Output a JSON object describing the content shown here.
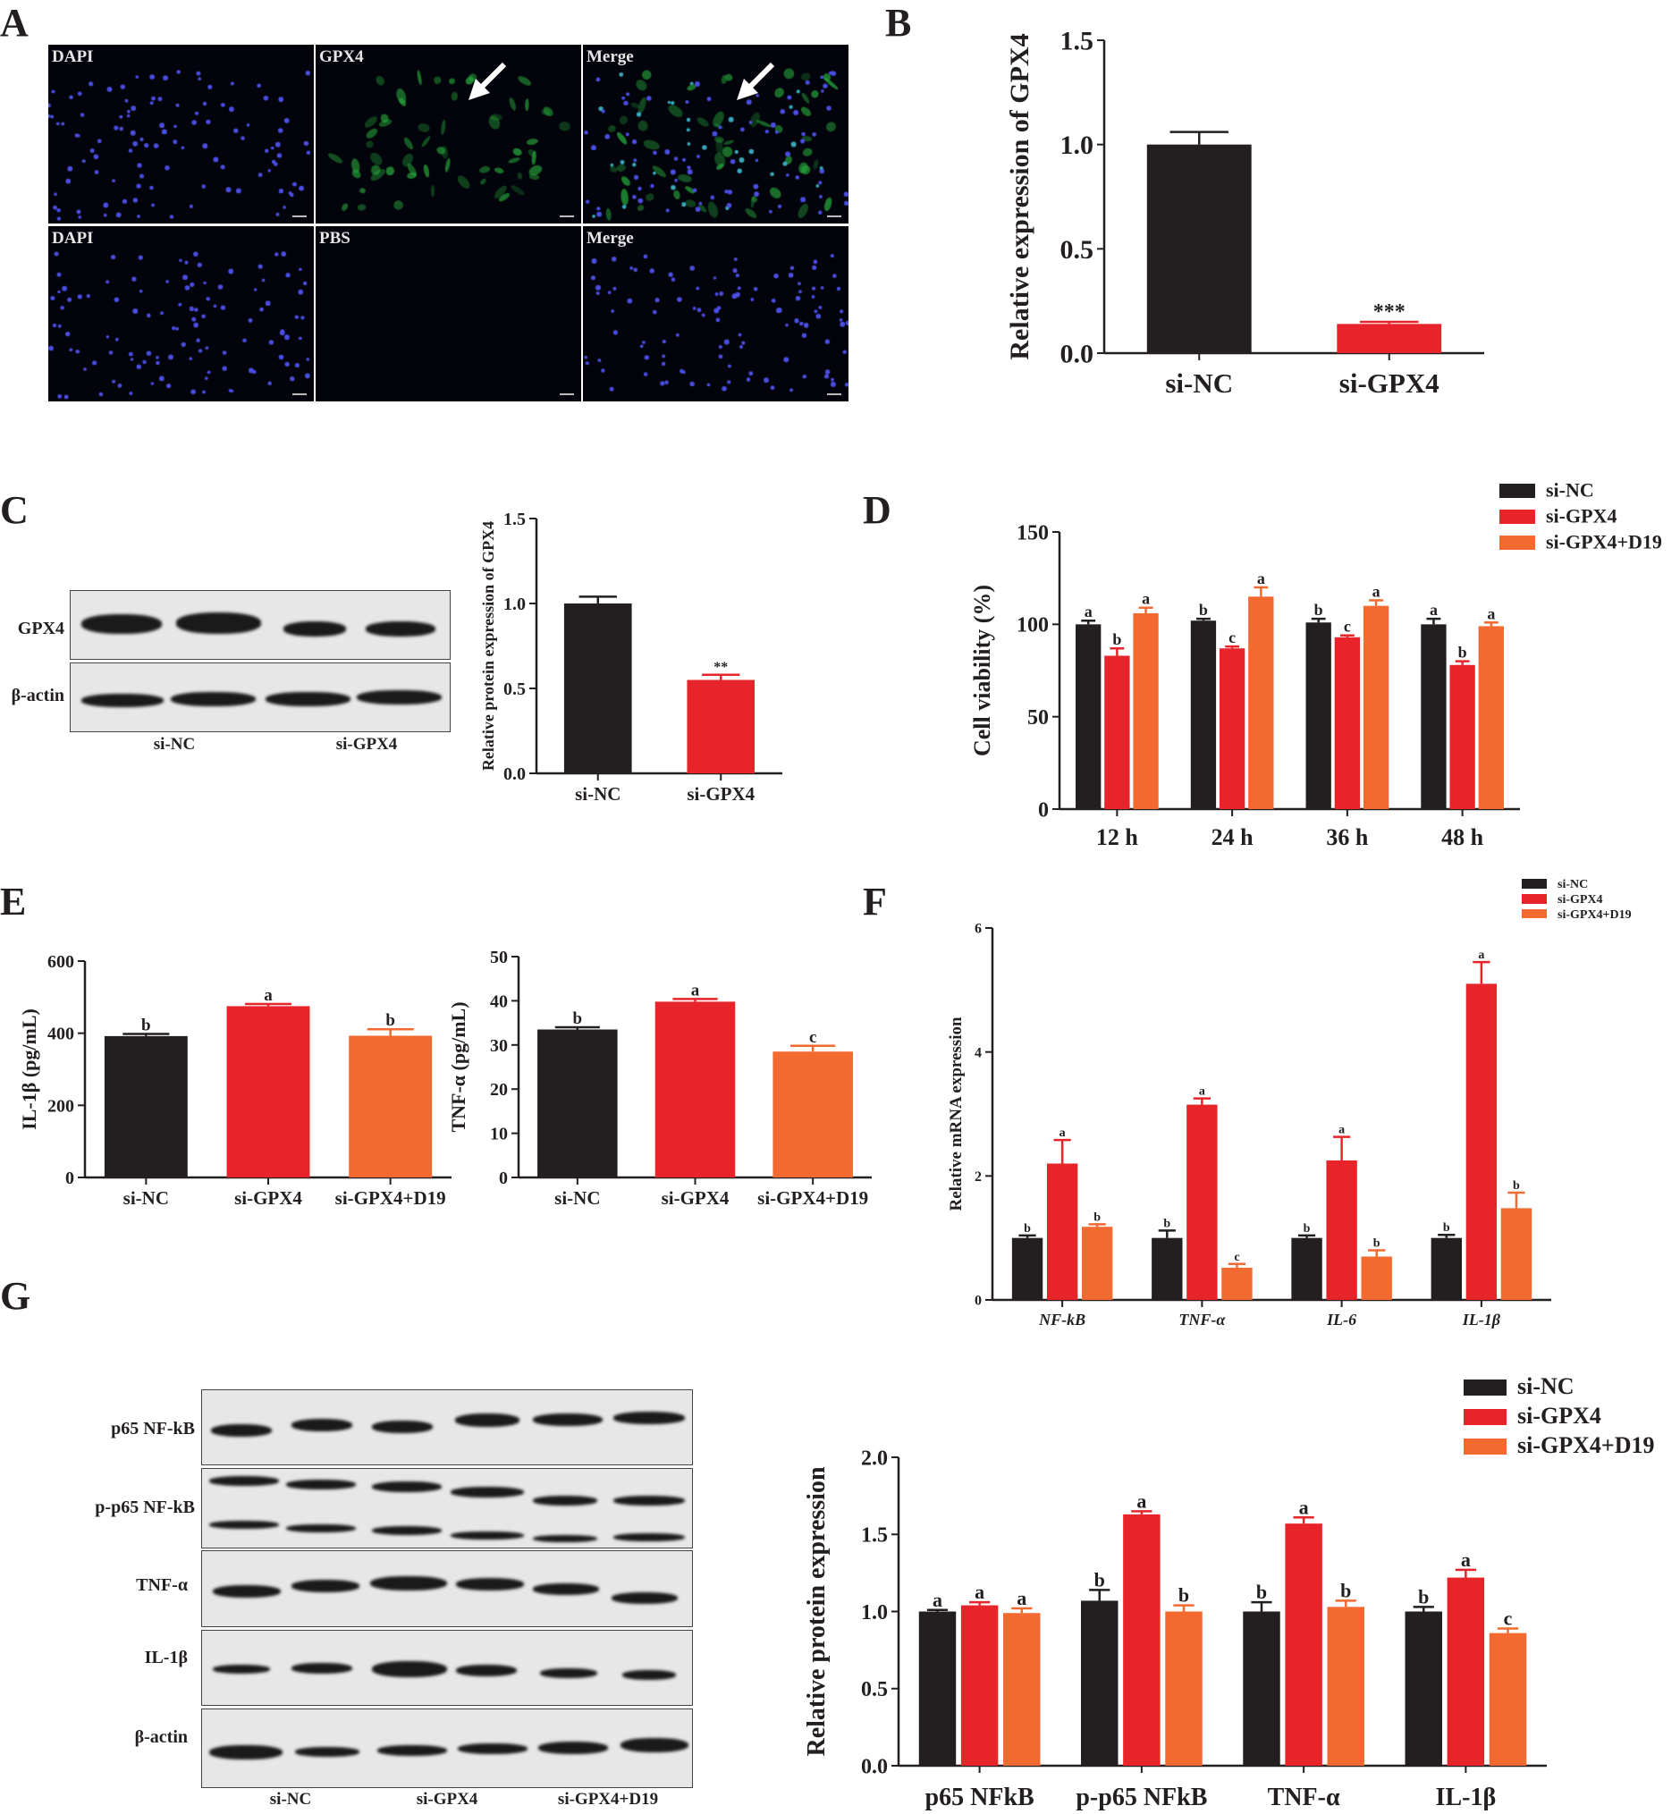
{
  "panels": {
    "A": "A",
    "B": "B",
    "C": "C",
    "D": "D",
    "E": "E",
    "F": "F",
    "G": "G"
  },
  "colors": {
    "si_nc": "#231f20",
    "si_gpx4": "#e6242a",
    "si_gpx4_d19": "#f26a30"
  },
  "panel_a": {
    "top_row": [
      "DAPI",
      "GPX4",
      "Merge"
    ],
    "bottom_row": [
      "DAPI",
      "PBS",
      "Merge"
    ]
  },
  "panel_c_blot": {
    "rows": [
      "GPX4",
      "β-actin"
    ],
    "lanes": [
      "si-NC",
      "si-GPX4"
    ]
  },
  "panel_g_blot": {
    "rows": [
      "p65 NF-kB",
      "p-p65 NF-kB",
      "TNF-α",
      "IL-1β",
      "β-actin"
    ],
    "lanes": [
      "si-NC",
      "si-GPX4",
      "si-GPX4+D19"
    ]
  },
  "chart_data": [
    {
      "id": "B",
      "type": "bar",
      "ylabel": "Relative expression of GPX4",
      "ylim": [
        0,
        1.5
      ],
      "yticks": [
        "0.0",
        "0.5",
        "1.0",
        "1.5"
      ],
      "categories": [
        "si-NC",
        "si-GPX4"
      ],
      "series": [
        {
          "values": [
            1.0,
            0.14
          ],
          "errors": [
            0.06,
            0.01
          ]
        }
      ],
      "annotations": [
        "",
        "***"
      ]
    },
    {
      "id": "C",
      "type": "bar",
      "ylabel": "Relative protein expression of GPX4",
      "ylim": [
        0,
        1.5
      ],
      "yticks": [
        "0.0",
        "0.5",
        "1.0",
        "1.5"
      ],
      "categories": [
        "si-NC",
        "si-GPX4"
      ],
      "series": [
        {
          "values": [
            1.0,
            0.55
          ],
          "errors": [
            0.04,
            0.03
          ]
        }
      ],
      "annotations": [
        "",
        "**"
      ]
    },
    {
      "id": "D",
      "type": "bar",
      "ylabel": "Cell viability (%)",
      "ylim": [
        0,
        150
      ],
      "yticks": [
        "0",
        "50",
        "100",
        "150"
      ],
      "categories": [
        "12 h",
        "24 h",
        "36 h",
        "48 h"
      ],
      "legend": [
        "si-NC",
        "si-GPX4",
        "si-GPX4+D19"
      ],
      "series": [
        {
          "name": "si-NC",
          "values": [
            100,
            102,
            101,
            100
          ],
          "errors": [
            2,
            1,
            2,
            3
          ],
          "letters": [
            "a",
            "b",
            "b",
            "a"
          ]
        },
        {
          "name": "si-GPX4",
          "values": [
            83,
            87,
            93,
            78
          ],
          "errors": [
            4,
            1,
            1,
            2
          ],
          "letters": [
            "b",
            "c",
            "c",
            "b"
          ]
        },
        {
          "name": "si-GPX4+D19",
          "values": [
            106,
            115,
            110,
            99
          ],
          "errors": [
            3,
            5,
            3,
            2
          ],
          "letters": [
            "a",
            "a",
            "a",
            "a"
          ]
        }
      ]
    },
    {
      "id": "E1",
      "type": "bar",
      "ylabel": "IL-1β (pg/mL)",
      "ylim": [
        0,
        600
      ],
      "yticks": [
        "0",
        "200",
        "400",
        "600"
      ],
      "categories": [
        "si-NC",
        "si-GPX4",
        "si-GPX4+D19"
      ],
      "series": [
        {
          "values": [
            392,
            475,
            393
          ],
          "errors": [
            6,
            6,
            18
          ]
        }
      ],
      "annotations": [
        "b",
        "a",
        "b"
      ]
    },
    {
      "id": "E2",
      "type": "bar",
      "ylabel": "TNF-α (pg/mL)",
      "ylim": [
        0,
        50
      ],
      "yticks": [
        "0",
        "10",
        "20",
        "30",
        "40",
        "50"
      ],
      "categories": [
        "si-NC",
        "si-GPX4",
        "si-GPX4+D19"
      ],
      "series": [
        {
          "values": [
            33.5,
            39.8,
            28.5
          ],
          "errors": [
            0.5,
            0.6,
            1.3
          ]
        }
      ],
      "annotations": [
        "b",
        "a",
        "c"
      ]
    },
    {
      "id": "F",
      "type": "bar",
      "ylabel": "Relative mRNA expression",
      "ylim": [
        0,
        6
      ],
      "yticks": [
        "0",
        "2",
        "4",
        "6"
      ],
      "categories": [
        "NF-kB",
        "TNF-α",
        "IL-6",
        "IL-1β"
      ],
      "legend": [
        "si-NC",
        "si-GPX4",
        "si-GPX4+D19"
      ],
      "series": [
        {
          "name": "si-NC",
          "values": [
            1.0,
            1.0,
            1.0,
            1.0
          ],
          "errors": [
            0.04,
            0.12,
            0.04,
            0.05
          ],
          "letters": [
            "b",
            "b",
            "b",
            "b"
          ]
        },
        {
          "name": "si-GPX4",
          "values": [
            2.2,
            3.15,
            2.25,
            5.1
          ],
          "errors": [
            0.38,
            0.1,
            0.38,
            0.35
          ],
          "letters": [
            "a",
            "a",
            "a",
            "a"
          ]
        },
        {
          "name": "si-GPX4+D19",
          "values": [
            1.18,
            0.52,
            0.7,
            1.48
          ],
          "errors": [
            0.04,
            0.06,
            0.1,
            0.25
          ],
          "letters": [
            "b",
            "c",
            "b",
            "b"
          ]
        }
      ]
    },
    {
      "id": "G",
      "type": "bar",
      "ylabel": "Relative protein expression",
      "ylim": [
        0,
        2
      ],
      "yticks": [
        "0.0",
        "0.5",
        "1.0",
        "1.5",
        "2.0"
      ],
      "categories": [
        "p65 NFkB",
        "p-p65 NFkB",
        "TNF-α",
        "IL-1β"
      ],
      "legend": [
        "si-NC",
        "si-GPX4",
        "si-GPX4+D19"
      ],
      "series": [
        {
          "name": "si-NC",
          "values": [
            1.0,
            1.07,
            1.0,
            1.0
          ],
          "errors": [
            0.01,
            0.07,
            0.06,
            0.03
          ],
          "letters": [
            "a",
            "b",
            "b",
            "b"
          ]
        },
        {
          "name": "si-GPX4",
          "values": [
            1.04,
            1.63,
            1.57,
            1.22
          ],
          "errors": [
            0.02,
            0.02,
            0.04,
            0.05
          ],
          "letters": [
            "a",
            "a",
            "a",
            "a"
          ]
        },
        {
          "name": "si-GPX4+D19",
          "values": [
            0.99,
            1.0,
            1.03,
            0.86
          ],
          "errors": [
            0.03,
            0.04,
            0.04,
            0.03
          ],
          "letters": [
            "a",
            "b",
            "b",
            "c"
          ]
        }
      ]
    }
  ]
}
